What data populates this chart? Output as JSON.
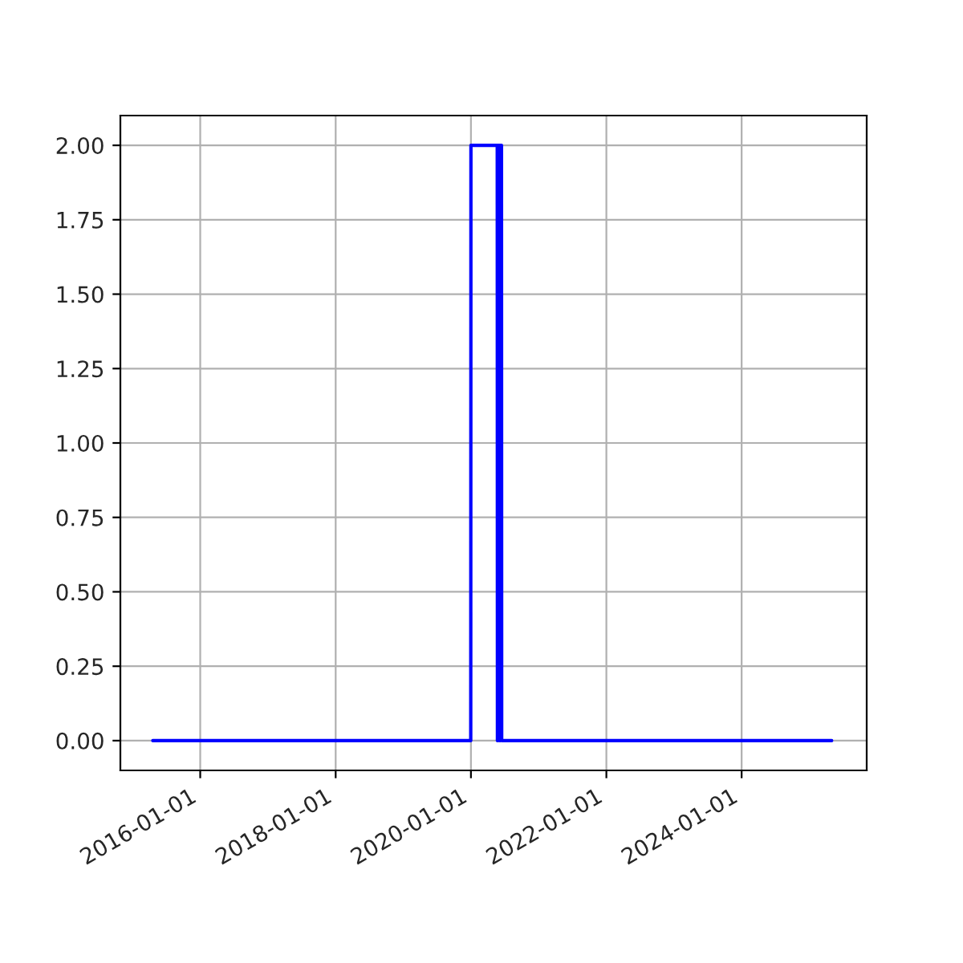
{
  "chart_data": {
    "type": "line",
    "series": [
      {
        "color": "#0000ff",
        "x": [
          "2015-04-20",
          "2019-12-31",
          "2020-01-01",
          "2020-05-22",
          "2020-05-23",
          "2020-05-27",
          "2020-05-28",
          "2020-06-02",
          "2020-06-03",
          "2020-06-08",
          "2020-06-09",
          "2020-06-14",
          "2020-06-15",
          "2020-06-20",
          "2020-06-21",
          "2025-05-01"
        ],
        "values": [
          0,
          0,
          2,
          2,
          0,
          0,
          2,
          2,
          0,
          0,
          2,
          2,
          0,
          0,
          0,
          0
        ]
      }
    ],
    "xlim": [
      "2014-10-27",
      "2025-11-06"
    ],
    "xticks": [
      "2016-01-01",
      "2018-01-01",
      "2020-01-01",
      "2022-01-01",
      "2024-01-01"
    ],
    "ylim": [
      -0.1,
      2.1
    ],
    "yticks": [
      {
        "value": 0,
        "label": "0.00"
      },
      {
        "value": 0.25,
        "label": "0.25"
      },
      {
        "value": 0.5,
        "label": "0.50"
      },
      {
        "value": 0.75,
        "label": "0.75"
      },
      {
        "value": 1,
        "label": "1.00"
      },
      {
        "value": 1.25,
        "label": "1.25"
      },
      {
        "value": 1.5,
        "label": "1.50"
      },
      {
        "value": 1.75,
        "label": "1.75"
      },
      {
        "value": 2,
        "label": "2.00"
      }
    ],
    "grid": true,
    "marker": "none",
    "line_style": "solid"
  }
}
